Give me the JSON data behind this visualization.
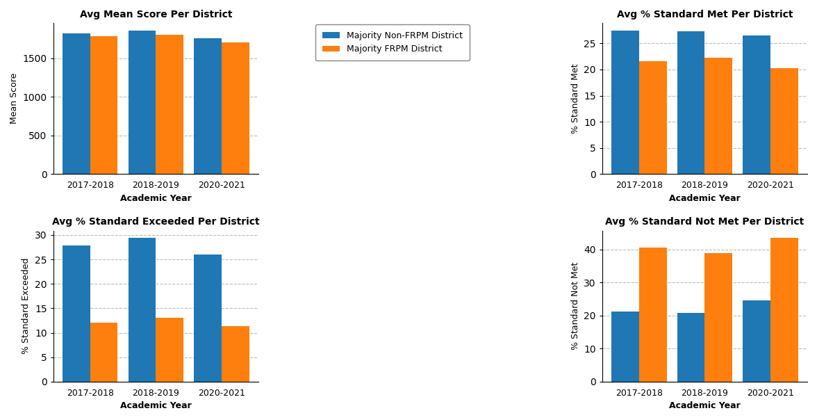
{
  "years": [
    "2017-2018",
    "2018-2019",
    "2020-2021"
  ],
  "mean_score": {
    "non_frpm": [
      1820,
      1860,
      1755
    ],
    "frpm": [
      1785,
      1800,
      1700
    ]
  },
  "pct_met": {
    "non_frpm": [
      27.5,
      27.3,
      26.5
    ],
    "frpm": [
      21.6,
      22.2,
      20.3
    ]
  },
  "pct_exceeded": {
    "non_frpm": [
      27.8,
      29.4,
      26.0
    ],
    "frpm": [
      12.0,
      13.0,
      11.4
    ]
  },
  "pct_not_met": {
    "non_frpm": [
      21.2,
      20.8,
      24.5
    ],
    "frpm": [
      40.5,
      38.8,
      43.5
    ]
  },
  "color_non_frpm": "#1f77b4",
  "color_frpm": "#ff7f0e",
  "label_non_frpm": "Majority Non-FRPM District",
  "label_frpm": "Majority FRPM District",
  "titles": [
    "Avg Mean Score Per District",
    "Avg % Standard Met Per District",
    "Avg % Standard Exceeded Per District",
    "Avg % Standard Not Met Per District"
  ],
  "ylabels": [
    "Mean Score",
    "% Standard Met",
    "% Standard Exceeded",
    "% Standard Not Met"
  ],
  "xlabel": "Academic Year",
  "background_color": "#ffffff",
  "grid_color": "#bbbbbb"
}
